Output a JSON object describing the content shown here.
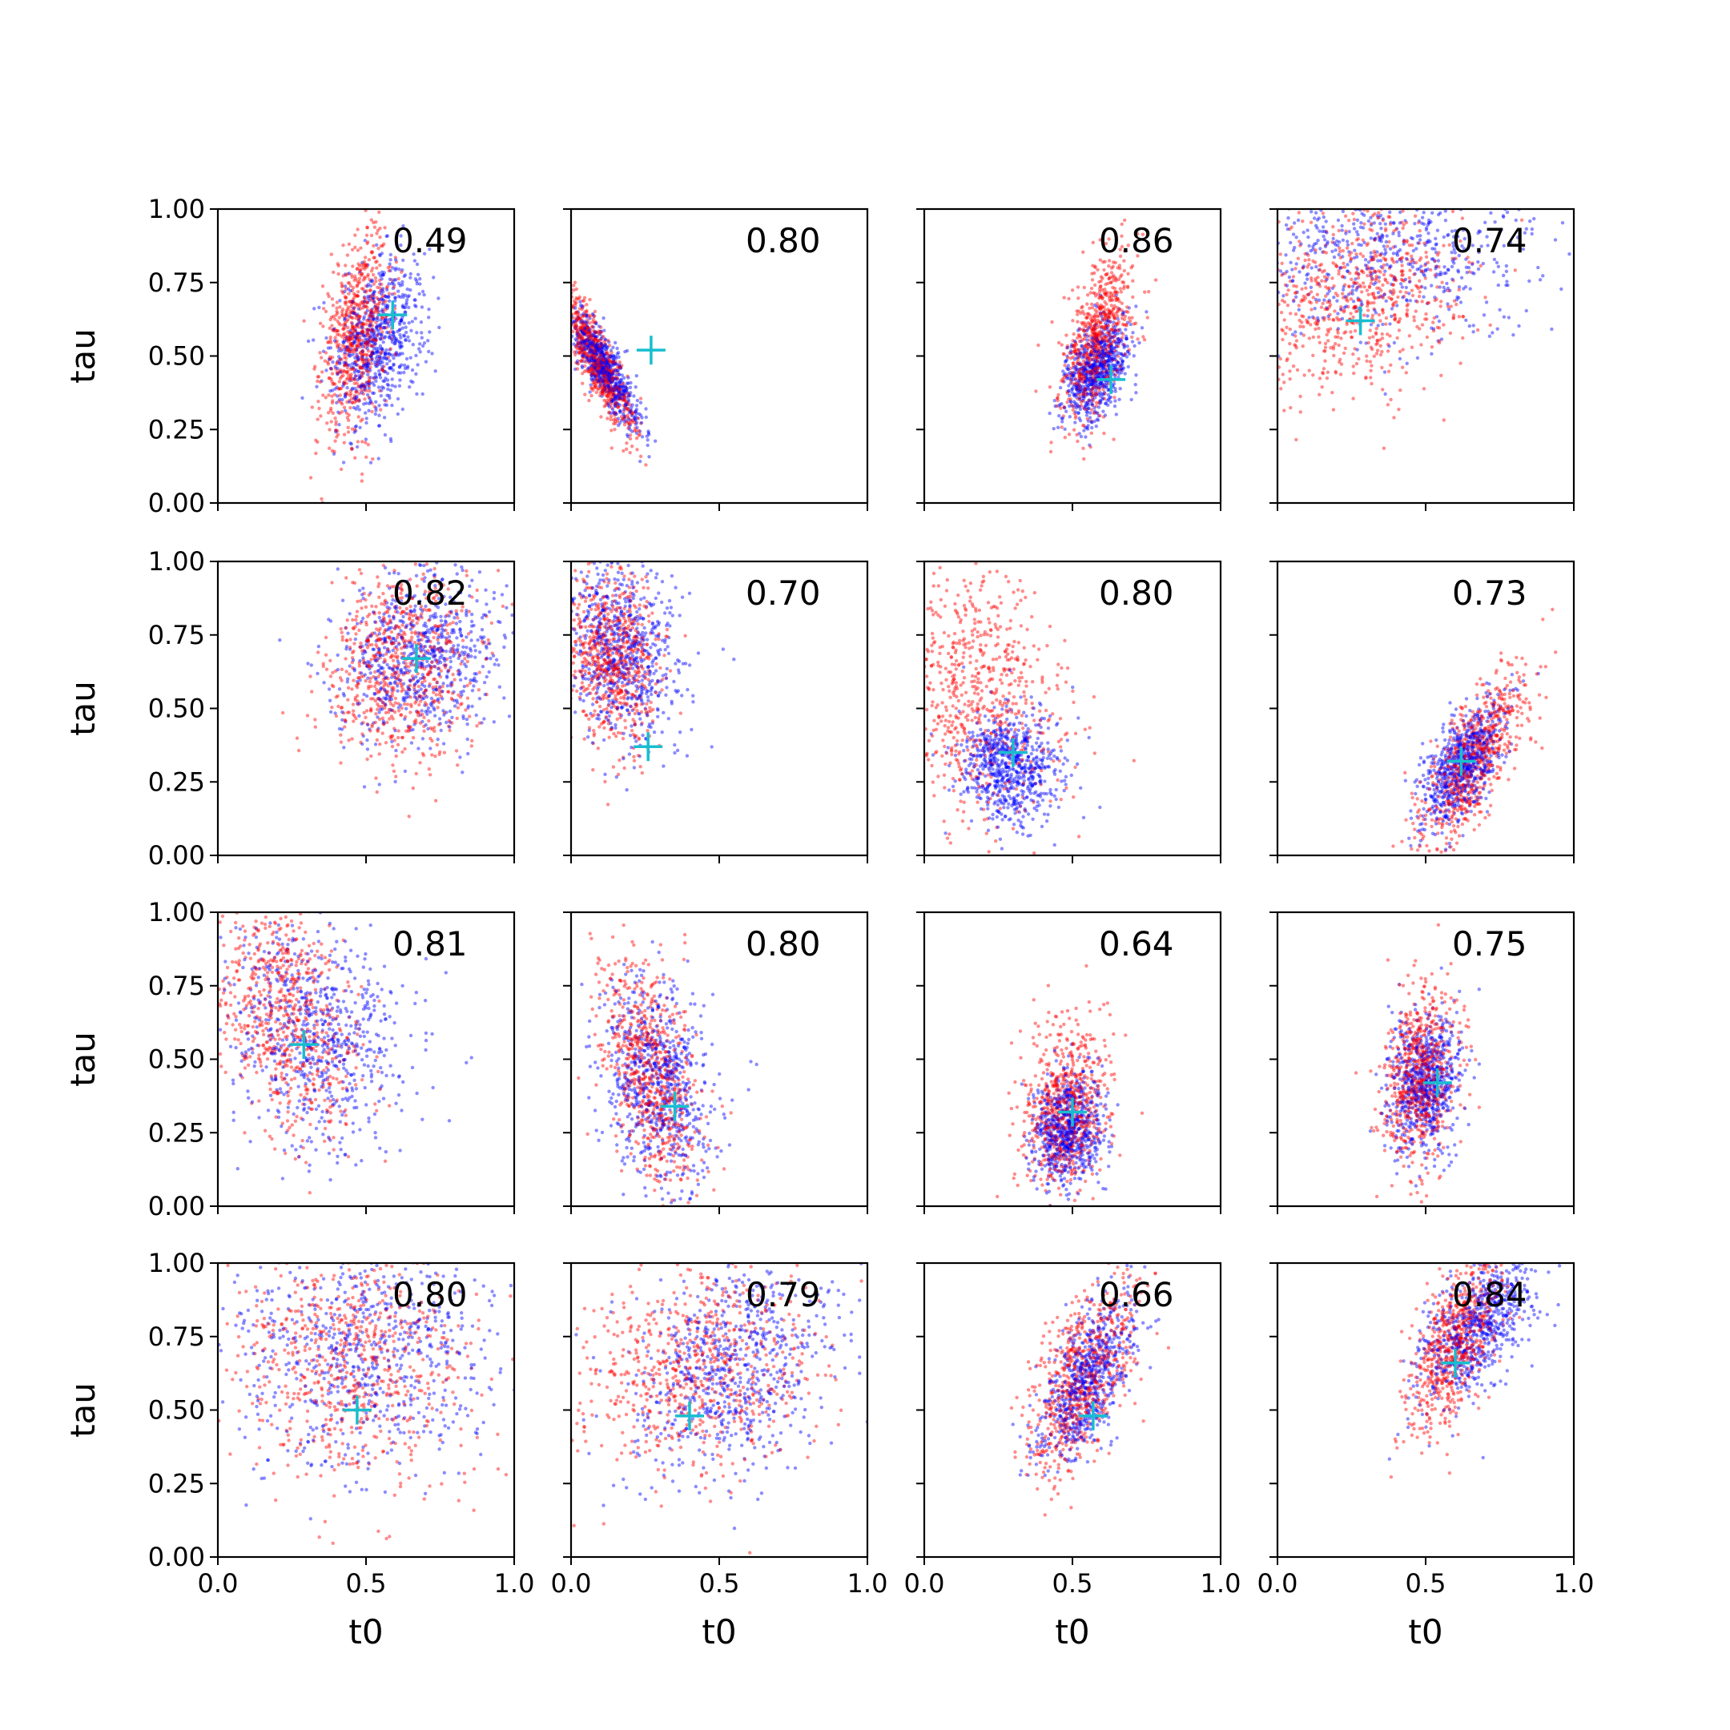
{
  "figure": {
    "series_colors": {
      "blue": "#0000ff",
      "red": "#ff0000",
      "marker": "#17becf"
    }
  },
  "chart_data": [
    {
      "type": "scatter",
      "row": 0,
      "col": 0,
      "annotation": "0.49",
      "marker": [
        0.59,
        0.64
      ],
      "blue": {
        "cx": 0.54,
        "cy": 0.55,
        "sx": 0.08,
        "sy": 0.14,
        "rho": 0.3
      },
      "red": {
        "cx": 0.47,
        "cy": 0.58,
        "sx": 0.06,
        "sy": 0.17,
        "rho": 0.4
      }
    },
    {
      "type": "scatter",
      "row": 0,
      "col": 1,
      "annotation": "0.80",
      "marker": [
        0.27,
        0.52
      ],
      "blue": {
        "cx": 0.11,
        "cy": 0.46,
        "sx": 0.06,
        "sy": 0.1,
        "rho": -0.85
      },
      "red": {
        "cx": 0.09,
        "cy": 0.48,
        "sx": 0.06,
        "sy": 0.12,
        "rho": -0.85
      }
    },
    {
      "type": "scatter",
      "row": 0,
      "col": 2,
      "annotation": "0.86",
      "marker": [
        0.63,
        0.42
      ],
      "blue": {
        "cx": 0.58,
        "cy": 0.45,
        "sx": 0.06,
        "sy": 0.09,
        "rho": 0.4
      },
      "red": {
        "cx": 0.58,
        "cy": 0.55,
        "sx": 0.06,
        "sy": 0.14,
        "rho": 0.5
      }
    },
    {
      "type": "scatter",
      "row": 0,
      "col": 3,
      "annotation": "0.74",
      "marker": [
        0.28,
        0.62
      ],
      "blue": {
        "cx": 0.35,
        "cy": 0.85,
        "sx": 0.3,
        "sy": 0.15,
        "rho": 0.1
      },
      "red": {
        "cx": 0.28,
        "cy": 0.7,
        "sx": 0.18,
        "sy": 0.17,
        "rho": 0.2
      }
    },
    {
      "type": "scatter",
      "row": 1,
      "col": 0,
      "annotation": "0.82",
      "marker": [
        0.67,
        0.67
      ],
      "blue": {
        "cx": 0.68,
        "cy": 0.68,
        "sx": 0.14,
        "sy": 0.15,
        "rho": 0.1
      },
      "red": {
        "cx": 0.62,
        "cy": 0.64,
        "sx": 0.13,
        "sy": 0.16,
        "rho": 0.1
      }
    },
    {
      "type": "scatter",
      "row": 1,
      "col": 1,
      "annotation": "0.70",
      "marker": [
        0.26,
        0.37
      ],
      "blue": {
        "cx": 0.17,
        "cy": 0.7,
        "sx": 0.1,
        "sy": 0.16,
        "rho": -0.2
      },
      "red": {
        "cx": 0.14,
        "cy": 0.68,
        "sx": 0.08,
        "sy": 0.15,
        "rho": -0.2
      }
    },
    {
      "type": "scatter",
      "row": 1,
      "col": 2,
      "annotation": "0.80",
      "marker": [
        0.3,
        0.35
      ],
      "blue": {
        "cx": 0.29,
        "cy": 0.3,
        "sx": 0.08,
        "sy": 0.1,
        "rho": 0.0
      },
      "red": {
        "cx": 0.17,
        "cy": 0.55,
        "sx": 0.15,
        "sy": 0.2,
        "rho": -0.2
      }
    },
    {
      "type": "scatter",
      "row": 1,
      "col": 3,
      "annotation": "0.73",
      "marker": [
        0.62,
        0.32
      ],
      "blue": {
        "cx": 0.62,
        "cy": 0.3,
        "sx": 0.07,
        "sy": 0.1,
        "rho": 0.6
      },
      "red": {
        "cx": 0.66,
        "cy": 0.32,
        "sx": 0.09,
        "sy": 0.15,
        "rho": 0.75
      }
    },
    {
      "type": "scatter",
      "row": 2,
      "col": 0,
      "annotation": "0.81",
      "marker": [
        0.29,
        0.55
      ],
      "blue": {
        "cx": 0.32,
        "cy": 0.6,
        "sx": 0.16,
        "sy": 0.2,
        "rho": -0.2
      },
      "red": {
        "cx": 0.24,
        "cy": 0.65,
        "sx": 0.12,
        "sy": 0.2,
        "rho": -0.3
      }
    },
    {
      "type": "scatter",
      "row": 2,
      "col": 1,
      "annotation": "0.80",
      "marker": [
        0.35,
        0.34
      ],
      "blue": {
        "cx": 0.3,
        "cy": 0.42,
        "sx": 0.09,
        "sy": 0.18,
        "rho": -0.3
      },
      "red": {
        "cx": 0.27,
        "cy": 0.45,
        "sx": 0.08,
        "sy": 0.2,
        "rho": -0.5
      }
    },
    {
      "type": "scatter",
      "row": 2,
      "col": 2,
      "annotation": "0.64",
      "marker": [
        0.5,
        0.32
      ],
      "blue": {
        "cx": 0.48,
        "cy": 0.26,
        "sx": 0.06,
        "sy": 0.09,
        "rho": 0.1
      },
      "red": {
        "cx": 0.48,
        "cy": 0.33,
        "sx": 0.07,
        "sy": 0.14,
        "rho": 0.1
      }
    },
    {
      "type": "scatter",
      "row": 2,
      "col": 3,
      "annotation": "0.75",
      "marker": [
        0.54,
        0.42
      ],
      "blue": {
        "cx": 0.5,
        "cy": 0.42,
        "sx": 0.06,
        "sy": 0.12,
        "rho": 0.2
      },
      "red": {
        "cx": 0.48,
        "cy": 0.45,
        "sx": 0.06,
        "sy": 0.15,
        "rho": 0.2
      }
    },
    {
      "type": "scatter",
      "row": 3,
      "col": 0,
      "annotation": "0.80",
      "marker": [
        0.47,
        0.5
      ],
      "blue": {
        "cx": 0.5,
        "cy": 0.7,
        "sx": 0.22,
        "sy": 0.2,
        "rho": 0.0
      },
      "red": {
        "cx": 0.45,
        "cy": 0.65,
        "sx": 0.2,
        "sy": 0.2,
        "rho": 0.0
      }
    },
    {
      "type": "scatter",
      "row": 3,
      "col": 1,
      "annotation": "0.79",
      "marker": [
        0.4,
        0.48
      ],
      "blue": {
        "cx": 0.55,
        "cy": 0.65,
        "sx": 0.17,
        "sy": 0.18,
        "rho": 0.3
      },
      "red": {
        "cx": 0.42,
        "cy": 0.65,
        "sx": 0.2,
        "sy": 0.18,
        "rho": 0.2
      }
    },
    {
      "type": "scatter",
      "row": 3,
      "col": 2,
      "annotation": "0.66",
      "marker": [
        0.57,
        0.48
      ],
      "blue": {
        "cx": 0.55,
        "cy": 0.6,
        "sx": 0.08,
        "sy": 0.14,
        "rho": 0.65
      },
      "red": {
        "cx": 0.54,
        "cy": 0.62,
        "sx": 0.09,
        "sy": 0.17,
        "rho": 0.6
      }
    },
    {
      "type": "scatter",
      "row": 3,
      "col": 3,
      "annotation": "0.84",
      "marker": [
        0.6,
        0.66
      ],
      "blue": {
        "cx": 0.68,
        "cy": 0.78,
        "sx": 0.1,
        "sy": 0.13,
        "rho": 0.6
      },
      "red": {
        "cx": 0.6,
        "cy": 0.72,
        "sx": 0.08,
        "sy": 0.15,
        "rho": 0.6
      }
    }
  ],
  "axes": {
    "xlabel": "t0",
    "ylabel": "tau",
    "xlim": [
      0,
      1
    ],
    "ylim": [
      0,
      1
    ],
    "xticks": [
      "0.0",
      "0.5",
      "1.0"
    ],
    "yticks": [
      "0.00",
      "0.25",
      "0.50",
      "0.75",
      "1.00"
    ]
  }
}
